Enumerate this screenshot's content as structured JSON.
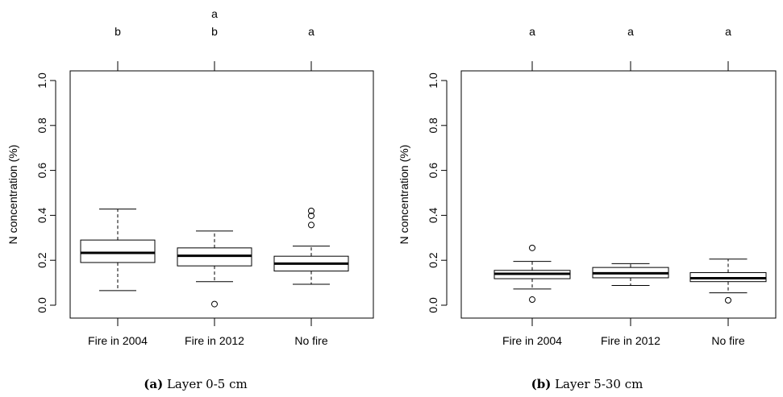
{
  "chart_data": [
    {
      "type": "box",
      "caption_label": "(a)",
      "caption_text": "Layer 0-5 cm",
      "ylabel": "N concentration (%)",
      "ylim": [
        0.0,
        1.0
      ],
      "yticks": [
        "0.0",
        "0.2",
        "0.4",
        "0.6",
        "0.8",
        "1.0"
      ],
      "categories": [
        "Fire in 2004",
        "Fire in 2012",
        "No fire"
      ],
      "letters": [
        [
          "b"
        ],
        [
          "a",
          "b"
        ],
        [
          "a"
        ]
      ],
      "boxes": [
        {
          "whisker_low": 0.065,
          "q1": 0.19,
          "median": 0.233,
          "q3": 0.29,
          "whisker_high": 0.428,
          "outliers": []
        },
        {
          "whisker_low": 0.105,
          "q1": 0.175,
          "median": 0.22,
          "q3": 0.255,
          "whisker_high": 0.33,
          "outliers": [
            0.005
          ]
        },
        {
          "whisker_low": 0.093,
          "q1": 0.152,
          "median": 0.185,
          "q3": 0.218,
          "whisker_high": 0.263,
          "outliers": [
            0.357,
            0.398,
            0.42
          ]
        }
      ]
    },
    {
      "type": "box",
      "caption_label": "(b)",
      "caption_text": "Layer 5-30 cm",
      "ylabel": "N concentration (%)",
      "ylim": [
        0.0,
        1.0
      ],
      "yticks": [
        "0.0",
        "0.2",
        "0.4",
        "0.6",
        "0.8",
        "1.0"
      ],
      "categories": [
        "Fire in 2004",
        "Fire in 2012",
        "No fire"
      ],
      "letters": [
        [
          "a"
        ],
        [
          "a"
        ],
        [
          "a"
        ]
      ],
      "boxes": [
        {
          "whisker_low": 0.072,
          "q1": 0.118,
          "median": 0.14,
          "q3": 0.155,
          "whisker_high": 0.195,
          "outliers": [
            0.025,
            0.255
          ]
        },
        {
          "whisker_low": 0.088,
          "q1": 0.122,
          "median": 0.142,
          "q3": 0.168,
          "whisker_high": 0.185,
          "outliers": []
        },
        {
          "whisker_low": 0.055,
          "q1": 0.105,
          "median": 0.12,
          "q3": 0.145,
          "whisker_high": 0.205,
          "outliers": [
            0.022
          ]
        }
      ]
    }
  ]
}
